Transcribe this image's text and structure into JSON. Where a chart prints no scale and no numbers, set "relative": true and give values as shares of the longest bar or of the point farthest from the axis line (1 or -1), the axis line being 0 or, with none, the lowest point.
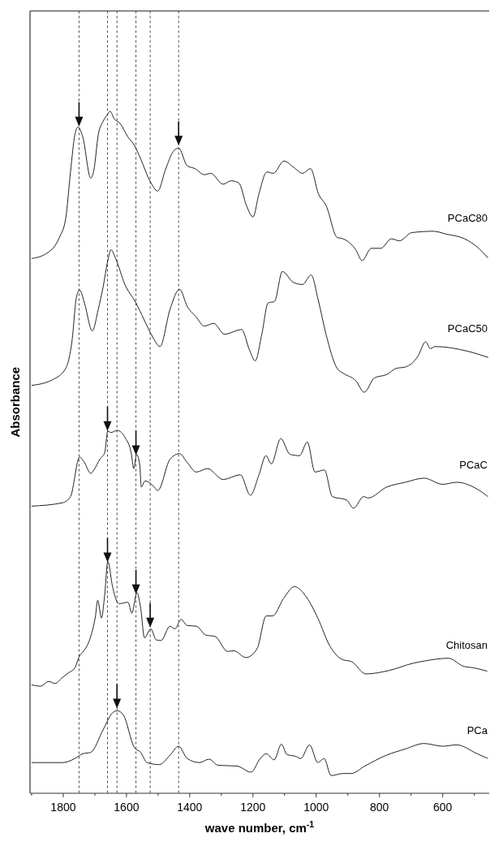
{
  "chart_data": {
    "type": "line",
    "relative": true,
    "xlabel": "wave number, cm$^{-1}$",
    "ylabel": "Absorbance",
    "xlim": [
      1905,
      453
    ],
    "xticks": [
      {
        "value": 1900,
        "label": null
      },
      1800,
      {
        "value": 1700,
        "label": null
      },
      1600,
      {
        "value": 1500,
        "label": null
      },
      1400,
      {
        "value": 1300,
        "label": null
      },
      1200,
      {
        "value": 1100,
        "label": null
      },
      1000,
      {
        "value": 900,
        "label": null
      },
      800,
      {
        "value": 700,
        "label": null
      },
      600,
      {
        "value": 500,
        "label": null
      }
    ],
    "legend": false,
    "grid": false,
    "marker": "none",
    "line_style": "solid",
    "tick_labels": "x",
    "ref_lines": [
      {
        "axis": "x",
        "value": 1750,
        "color": "#333333",
        "line_style": "dashed"
      },
      {
        "axis": "x",
        "value": 1660,
        "color": "#333333",
        "line_style": "dashed"
      },
      {
        "axis": "x",
        "value": 1630,
        "color": "#333333",
        "line_style": "dashed"
      },
      {
        "axis": "x",
        "value": 1570,
        "color": "#333333",
        "line_style": "dashed"
      },
      {
        "axis": "x",
        "value": 1525,
        "color": "#333333",
        "line_style": "dashed"
      },
      {
        "axis": "x",
        "value": 1435,
        "color": "#333333",
        "line_style": "dashed"
      }
    ],
    "series": [
      {
        "name": "PCaC80",
        "color": "#222222",
        "x": [
          1900,
          1851,
          1812,
          1792,
          1777,
          1763,
          1753,
          1738,
          1713,
          1703,
          1689,
          1674,
          1659,
          1652,
          1639,
          1620,
          1595,
          1575,
          1555,
          1526,
          1501,
          1477,
          1452,
          1435,
          1408,
          1384,
          1353,
          1334,
          1294,
          1270,
          1245,
          1220,
          1200,
          1181,
          1156,
          1136,
          1102,
          1072,
          1043,
          1018,
          993,
          968,
          934,
          915,
          875,
          855,
          826,
          796,
          762,
          737,
          698,
          629,
          590,
          531,
          491,
          457
        ],
        "values": [
          0.784,
          0.792,
          0.815,
          0.843,
          0.911,
          0.966,
          0.977,
          0.962,
          0.902,
          0.914,
          0.966,
          0.985,
          0.996,
          1.0,
          0.989,
          0.982,
          0.962,
          0.95,
          0.93,
          0.898,
          0.883,
          0.914,
          0.941,
          0.946,
          0.92,
          0.916,
          0.907,
          0.909,
          0.893,
          0.898,
          0.895,
          0.861,
          0.845,
          0.879,
          0.911,
          0.909,
          0.927,
          0.918,
          0.909,
          0.916,
          0.879,
          0.861,
          0.815,
          0.813,
          0.797,
          0.781,
          0.799,
          0.799,
          0.813,
          0.81,
          0.822,
          0.824,
          0.82,
          0.813,
          0.801,
          0.785
        ]
      },
      {
        "name": "PCaC50",
        "color": "#222222",
        "x": [
          1900,
          1831,
          1792,
          1772,
          1758,
          1748,
          1733,
          1708,
          1689,
          1674,
          1659,
          1649,
          1635,
          1605,
          1570,
          1546,
          1517,
          1494,
          1462,
          1432,
          1408,
          1379,
          1354,
          1324,
          1290,
          1236,
          1211,
          1193,
          1172,
          1152,
          1132,
          1107,
          1072,
          1043,
          1016,
          994,
          969,
          934,
          915,
          875,
          848,
          816,
          777,
          747,
          718,
          678,
          654,
          639,
          624,
          520,
          456
        ],
        "values": [
          0.598,
          0.607,
          0.623,
          0.664,
          0.728,
          0.738,
          0.719,
          0.678,
          0.71,
          0.742,
          0.781,
          0.797,
          0.785,
          0.746,
          0.719,
          0.696,
          0.669,
          0.655,
          0.71,
          0.739,
          0.714,
          0.698,
          0.685,
          0.689,
          0.673,
          0.68,
          0.65,
          0.634,
          0.673,
          0.719,
          0.721,
          0.765,
          0.749,
          0.746,
          0.76,
          0.724,
          0.673,
          0.623,
          0.616,
          0.605,
          0.588,
          0.609,
          0.614,
          0.623,
          0.625,
          0.641,
          0.662,
          0.652,
          0.655,
          0.648,
          0.639
        ]
      },
      {
        "name": "PCaC",
        "color": "#222222",
        "x": [
          1900,
          1802,
          1777,
          1748,
          1733,
          1713,
          1703,
          1684,
          1669,
          1659,
          1649,
          1629,
          1605,
          1585,
          1577,
          1568,
          1558,
          1553,
          1541,
          1516,
          1501,
          1462,
          1432,
          1408,
          1379,
          1344,
          1294,
          1240,
          1208,
          1181,
          1159,
          1142,
          1112,
          1083,
          1053,
          1028,
          1004,
          974,
          949,
          904,
          882,
          850,
          836,
          777,
          718,
          659,
          600,
          556,
          491,
          457
        ],
        "values": [
          0.421,
          0.426,
          0.435,
          0.493,
          0.485,
          0.469,
          0.474,
          0.49,
          0.499,
          0.531,
          0.529,
          0.532,
          0.522,
          0.499,
          0.476,
          0.497,
          0.481,
          0.449,
          0.458,
          0.451,
          0.444,
          0.49,
          0.498,
          0.485,
          0.471,
          0.476,
          0.46,
          0.467,
          0.437,
          0.467,
          0.495,
          0.483,
          0.52,
          0.497,
          0.495,
          0.515,
          0.471,
          0.474,
          0.435,
          0.43,
          0.418,
          0.435,
          0.433,
          0.449,
          0.456,
          0.462,
          0.453,
          0.456,
          0.446,
          0.435
        ]
      },
      {
        "name": "Chitosan",
        "color": "#222222",
        "x": [
          1900,
          1871,
          1846,
          1826,
          1802,
          1782,
          1763,
          1748,
          1738,
          1713,
          1698,
          1691,
          1679,
          1669,
          1659,
          1644,
          1629,
          1624,
          1595,
          1583,
          1567,
          1555,
          1543,
          1523,
          1506,
          1491,
          1462,
          1447,
          1427,
          1408,
          1379,
          1349,
          1320,
          1280,
          1261,
          1222,
          1187,
          1158,
          1138,
          1104,
          1069,
          1030,
          995,
          957,
          917,
          888,
          843,
          770,
          691,
          657,
          582,
          533,
          503,
          459
        ],
        "values": [
          0.159,
          0.157,
          0.164,
          0.161,
          0.17,
          0.177,
          0.184,
          0.202,
          0.207,
          0.23,
          0.26,
          0.283,
          0.257,
          0.29,
          0.34,
          0.303,
          0.28,
          0.278,
          0.28,
          0.264,
          0.294,
          0.271,
          0.228,
          0.241,
          0.225,
          0.224,
          0.245,
          0.241,
          0.255,
          0.246,
          0.245,
          0.232,
          0.23,
          0.208,
          0.209,
          0.199,
          0.212,
          0.26,
          0.26,
          0.285,
          0.303,
          0.287,
          0.257,
          0.216,
          0.196,
          0.193,
          0.175,
          0.18,
          0.191,
          0.194,
          0.198,
          0.186,
          0.184,
          0.179
        ]
      },
      {
        "name": "PCa",
        "color": "#222222",
        "x": [
          1900,
          1802,
          1763,
          1738,
          1713,
          1674,
          1644,
          1629,
          1610,
          1575,
          1555,
          1535,
          1496,
          1462,
          1435,
          1408,
          1369,
          1339,
          1310,
          1251,
          1206,
          1177,
          1158,
          1133,
          1110,
          1093,
          1064,
          1049,
          1021,
          995,
          975,
          953,
          915,
          890,
          846,
          777,
          718,
          659,
          600,
          556,
          491,
          457
        ],
        "values": [
          0.045,
          0.045,
          0.051,
          0.058,
          0.06,
          0.093,
          0.118,
          0.121,
          0.115,
          0.067,
          0.06,
          0.045,
          0.042,
          0.056,
          0.069,
          0.051,
          0.045,
          0.05,
          0.041,
          0.04,
          0.031,
          0.051,
          0.058,
          0.049,
          0.072,
          0.057,
          0.054,
          0.051,
          0.071,
          0.045,
          0.051,
          0.026,
          0.029,
          0.029,
          0.04,
          0.056,
          0.065,
          0.073,
          0.069,
          0.071,
          0.058,
          0.051
        ]
      }
    ]
  }
}
